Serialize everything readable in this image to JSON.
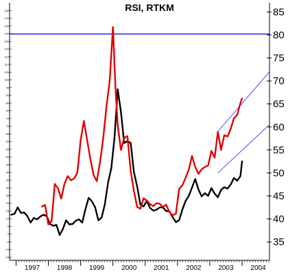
{
  "chart_data": {
    "type": "line",
    "title": "RSI, RTKM",
    "right_axis": {
      "ticks": [
        35,
        40,
        45,
        50,
        55,
        60,
        65,
        70,
        75,
        80,
        85
      ],
      "ylim": [
        31,
        87
      ]
    },
    "left_axis": {
      "ticks": [
        145,
        140,
        135,
        130,
        125,
        120,
        115,
        110,
        105,
        100,
        95,
        90,
        85,
        80,
        75,
        70,
        65,
        60,
        55,
        50,
        45,
        40,
        35,
        30,
        25,
        20,
        15,
        10,
        5,
        0,
        -5,
        -10,
        -15
      ],
      "ylim": [
        -17,
        150
      ]
    },
    "x_axis": {
      "ticks": [
        "1997",
        "1998",
        "1999",
        "2000",
        "2001",
        "2002",
        "2003",
        "2004"
      ],
      "xlim": [
        1996.8,
        2004.85
      ]
    },
    "reference_line": {
      "axis": "right",
      "value": 80.2,
      "color": "#0000cc"
    },
    "series": [
      {
        "axis": "right",
        "color": "#000000",
        "x": [
          1996.85,
          1996.95,
          1997.05,
          1997.15,
          1997.25,
          1997.35,
          1997.45,
          1997.55,
          1997.65,
          1997.75,
          1997.85,
          1997.95,
          1998.05,
          1998.15,
          1998.25,
          1998.35,
          1998.45,
          1998.55,
          1998.65,
          1998.75,
          1998.85,
          1998.95,
          1999.05,
          1999.15,
          1999.25,
          1999.35,
          1999.45,
          1999.55,
          1999.65,
          1999.75,
          1999.85,
          1999.95,
          2000.05,
          2000.15,
          2000.25,
          2000.35,
          2000.45,
          2000.55,
          2000.65,
          2000.75,
          2000.85,
          2000.95,
          2001.05,
          2001.15,
          2001.25,
          2001.35,
          2001.45,
          2001.55,
          2001.65,
          2001.75,
          2001.85,
          2001.95,
          2002.05,
          2002.15,
          2002.25,
          2002.35,
          2002.45,
          2002.55,
          2002.65,
          2002.75,
          2002.85,
          2002.95,
          2003.05,
          2003.15,
          2003.25,
          2003.35,
          2003.45,
          2003.55,
          2003.65,
          2003.75,
          2003.85,
          2003.95,
          2004.0
        ],
        "y": [
          40.9,
          41.1,
          42.5,
          41.3,
          41.4,
          40.6,
          39.2,
          40.2,
          39.9,
          40.5,
          40.9,
          40.6,
          38.9,
          38.5,
          38.7,
          36.5,
          37.8,
          39.7,
          38.8,
          38.9,
          39.6,
          39.9,
          39.2,
          42.1,
          44.6,
          43.8,
          42.5,
          39.7,
          40.3,
          43.2,
          47.9,
          51.0,
          57.7,
          68.2,
          63.2,
          56.5,
          56.9,
          56.5,
          50.2,
          47.1,
          43.1,
          42.7,
          43.9,
          42.4,
          41.8,
          42.0,
          42.5,
          42.5,
          41.7,
          41.7,
          40.4,
          39.3,
          39.7,
          42.0,
          43.9,
          45.0,
          46.8,
          48.7,
          46.4,
          44.9,
          45.6,
          45.0,
          46.7,
          45.5,
          44.7,
          46.3,
          46.9,
          46.6,
          47.5,
          48.9,
          48.3,
          49.3,
          52.5
        ]
      },
      {
        "axis": "right",
        "color": "#e00000",
        "x": [
          1997.8,
          1997.9,
          1998.0,
          1998.1,
          1998.2,
          1998.3,
          1998.4,
          1998.5,
          1998.6,
          1998.7,
          1998.8,
          1998.9,
          1999.0,
          1999.1,
          1999.2,
          1999.3,
          1999.4,
          1999.5,
          1999.6,
          1999.7,
          1999.8,
          1999.9,
          2000.0,
          2000.08,
          2000.15,
          2000.25,
          2000.35,
          2000.45,
          2000.55,
          2000.65,
          2000.75,
          2000.85,
          2000.95,
          2001.05,
          2001.15,
          2001.25,
          2001.35,
          2001.45,
          2001.55,
          2001.65,
          2001.75,
          2001.85,
          2001.95,
          2002.05,
          2002.15,
          2002.25,
          2002.35,
          2002.45,
          2002.55,
          2002.65,
          2002.75,
          2002.85,
          2002.95,
          2003.05,
          2003.15,
          2003.25,
          2003.35,
          2003.45,
          2003.55,
          2003.65,
          2003.75,
          2003.85,
          2003.95,
          2004.0
        ],
        "y": [
          42.7,
          43.0,
          38.8,
          39.5,
          47.6,
          46.6,
          44.4,
          47.6,
          49.3,
          48.4,
          48.8,
          50.1,
          57.1,
          61.3,
          57.2,
          53.1,
          49.6,
          48.2,
          52.3,
          57.5,
          64.3,
          70.0,
          81.7,
          68.5,
          60.3,
          55.0,
          57.6,
          58.0,
          50.4,
          46.1,
          42.6,
          42.2,
          44.5,
          44.0,
          43.2,
          42.8,
          43.4,
          43.3,
          42.6,
          43.1,
          41.5,
          40.8,
          41.1,
          46.5,
          47.3,
          48.9,
          50.7,
          53.7,
          51.3,
          49.8,
          50.8,
          51.3,
          51.6,
          54.8,
          53.3,
          58.9,
          55.0,
          58.2,
          57.9,
          59.6,
          61.9,
          62.6,
          65.2,
          66.2
        ]
      }
    ],
    "trendlines": [
      {
        "axis": "right",
        "color": "#3333ff",
        "from": [
          2003.25,
          59.0
        ],
        "to": [
          2004.85,
          72.0
        ]
      },
      {
        "axis": "right",
        "color": "#3333ff",
        "from": [
          2003.25,
          50.0
        ],
        "to": [
          2004.85,
          60.5
        ]
      }
    ]
  }
}
